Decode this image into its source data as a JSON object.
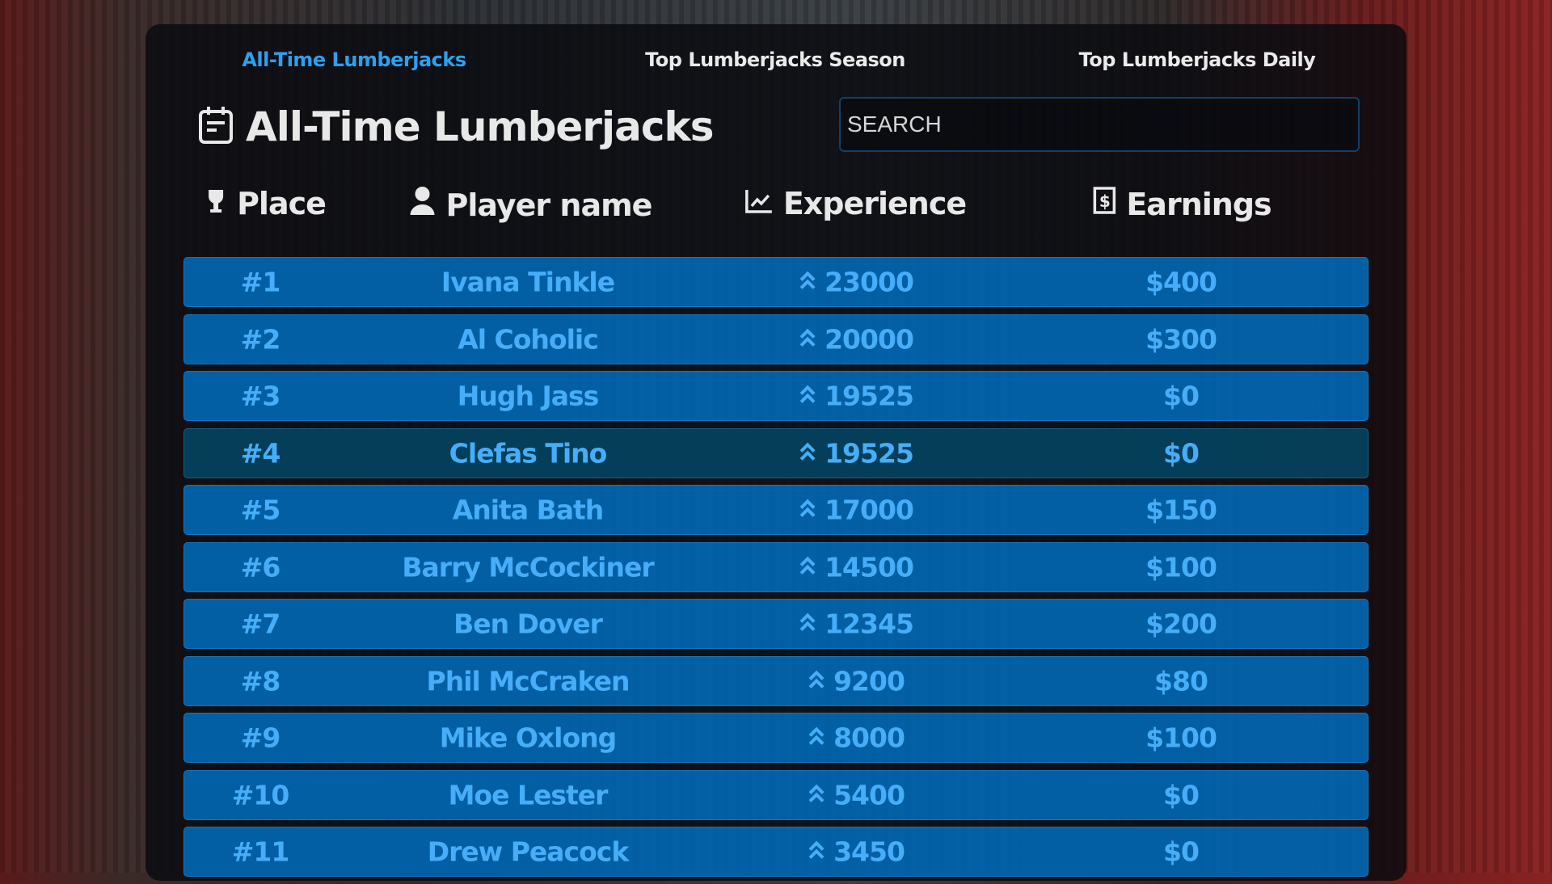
{
  "tabs": [
    {
      "label": "All-Time Lumberjacks",
      "active": true
    },
    {
      "label": "Top Lumberjacks Season",
      "active": false
    },
    {
      "label": "Top Lumberjacks Daily",
      "active": false
    }
  ],
  "header": {
    "title": "All-Time Lumberjacks",
    "icon": "calendar-icon"
  },
  "search": {
    "placeholder": "SEARCH",
    "value": ""
  },
  "columns": [
    {
      "label": "Place",
      "icon": "trophy-icon"
    },
    {
      "label": "Player name",
      "icon": "user-icon"
    },
    {
      "label": "Experience",
      "icon": "chart-line-icon"
    },
    {
      "label": "Earnings",
      "icon": "money-bill-icon"
    }
  ],
  "rows": [
    {
      "place": "#1",
      "name": "Ivana Tinkle",
      "experience": "23000",
      "earnings": "$400"
    },
    {
      "place": "#2",
      "name": "Al Coholic",
      "experience": "20000",
      "earnings": "$300"
    },
    {
      "place": "#3",
      "name": "Hugh Jass",
      "experience": "19525",
      "earnings": "$0"
    },
    {
      "place": "#4",
      "name": "Clefas Tino",
      "experience": "19525",
      "earnings": "$0"
    },
    {
      "place": "#5",
      "name": "Anita Bath",
      "experience": "17000",
      "earnings": "$150"
    },
    {
      "place": "#6",
      "name": "Barry McCockiner",
      "experience": "14500",
      "earnings": "$100"
    },
    {
      "place": "#7",
      "name": "Ben Dover",
      "experience": "12345",
      "earnings": "$200"
    },
    {
      "place": "#8",
      "name": "Phil McCraken",
      "experience": "9200",
      "earnings": "$80"
    },
    {
      "place": "#9",
      "name": "Mike Oxlong",
      "experience": "8000",
      "earnings": "$100"
    },
    {
      "place": "#10",
      "name": "Moe Lester",
      "experience": "5400",
      "earnings": "$0"
    },
    {
      "place": "#11",
      "name": "Drew Peacock",
      "experience": "3450",
      "earnings": "$0"
    }
  ],
  "colors": {
    "accent": "#2ea0f0",
    "row_bg": "#0076cd",
    "row_text": "#46aef8",
    "row_hover": "#04465f"
  }
}
